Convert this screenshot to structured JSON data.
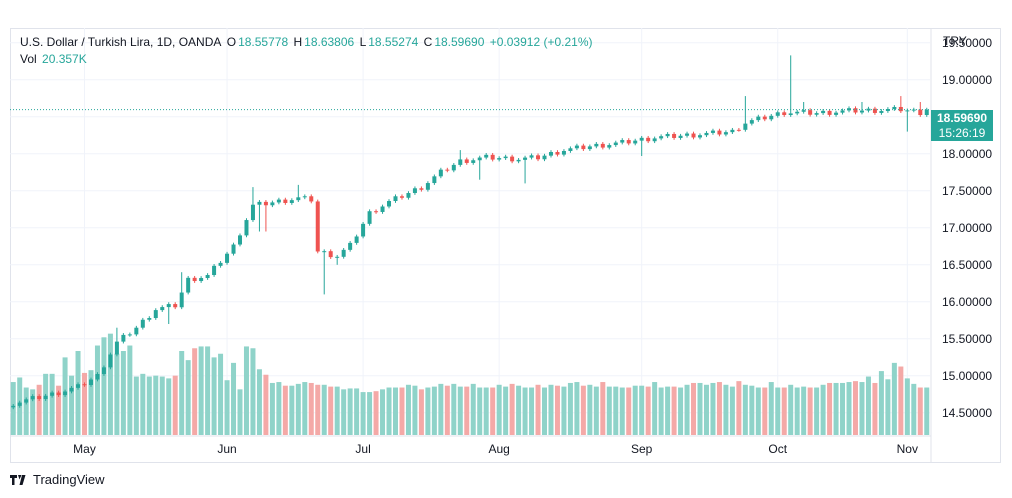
{
  "legend": {
    "symbol": "U.S. Dollar / Turkish Lira, 1D, OANDA",
    "o_label": "O",
    "o_value": "18.55778",
    "h_label": "H",
    "h_value": "18.63806",
    "l_label": "L",
    "l_value": "18.55274",
    "c_label": "C",
    "c_value": "18.59690",
    "change": "+0.03912 (+0.21%)",
    "vol_label": "Vol",
    "vol_value": "20.357K"
  },
  "currency": "TRY",
  "last_price": "18.59690",
  "countdown": "15:26:19",
  "brand": "TradingView",
  "colors": {
    "up": "#26a69a",
    "down": "#ef5350",
    "up_vol": "#8fd3c9",
    "down_vol": "#f4a9a7",
    "grid": "#f0f3fa"
  },
  "chart_data": {
    "type": "candlestick",
    "ylim": [
      14.2,
      19.7
    ],
    "y_ticks": [
      "19.50000",
      "19.00000",
      "18.50000",
      "18.00000",
      "17.50000",
      "17.00000",
      "16.50000",
      "16.00000",
      "15.50000",
      "15.00000",
      "14.50000"
    ],
    "y_tick_values": [
      19.5,
      19.0,
      18.5,
      18.0,
      17.5,
      17.0,
      16.5,
      16.0,
      15.5,
      15.0,
      14.5
    ],
    "x_labels": [
      "May",
      "Jun",
      "Jul",
      "Aug",
      "Sep",
      "Oct",
      "Nov"
    ],
    "x_label_index": [
      11,
      33,
      54,
      75,
      97,
      118,
      138
    ],
    "anchors": [
      [
        0,
        14.63
      ],
      [
        6,
        14.75
      ],
      [
        10,
        14.85
      ],
      [
        13,
        15.0
      ],
      [
        16,
        15.45
      ],
      [
        19,
        15.65
      ],
      [
        22,
        15.9
      ],
      [
        25,
        15.95
      ],
      [
        27,
        16.3
      ],
      [
        30,
        16.35
      ],
      [
        34,
        16.75
      ],
      [
        37,
        17.3
      ],
      [
        44,
        17.4
      ],
      [
        46,
        17.38
      ],
      [
        47,
        16.68
      ],
      [
        50,
        16.62
      ],
      [
        52,
        16.76
      ],
      [
        55,
        17.2
      ],
      [
        58,
        17.35
      ],
      [
        63,
        17.55
      ],
      [
        66,
        17.75
      ],
      [
        69,
        17.9
      ],
      [
        73,
        17.95
      ],
      [
        78,
        17.93
      ],
      [
        81,
        17.95
      ],
      [
        85,
        18.05
      ],
      [
        89,
        18.1
      ],
      [
        94,
        18.15
      ],
      [
        99,
        18.22
      ],
      [
        104,
        18.25
      ],
      [
        107,
        18.27
      ],
      [
        111,
        18.3
      ],
      [
        113,
        18.42
      ],
      [
        116,
        18.49
      ],
      [
        119,
        18.56
      ],
      [
        124,
        18.55
      ],
      [
        129,
        18.58
      ],
      [
        134,
        18.59
      ],
      [
        137,
        18.6
      ],
      [
        140,
        18.56
      ],
      [
        141,
        18.5969
      ]
    ],
    "spikes": [
      {
        "i": 16,
        "high": 15.65
      },
      {
        "i": 17,
        "high": 15.5
      },
      {
        "i": 18,
        "high": 15.45
      },
      {
        "i": 24,
        "low": 15.7
      },
      {
        "i": 26,
        "high": 16.4
      },
      {
        "i": 37,
        "high": 17.55
      },
      {
        "i": 38,
        "high": 17.35,
        "low": 16.95
      },
      {
        "i": 39,
        "low": 16.95
      },
      {
        "i": 44,
        "high": 17.58
      },
      {
        "i": 48,
        "low": 16.1
      },
      {
        "i": 50,
        "low": 16.5
      },
      {
        "i": 69,
        "high": 18.05
      },
      {
        "i": 72,
        "low": 17.65
      },
      {
        "i": 79,
        "low": 17.6
      },
      {
        "i": 81,
        "high": 17.95
      },
      {
        "i": 97,
        "low": 17.97
      },
      {
        "i": 113,
        "high": 18.78
      },
      {
        "i": 120,
        "high": 19.33
      },
      {
        "i": 122,
        "high": 18.7
      },
      {
        "i": 131,
        "high": 18.7
      },
      {
        "i": 137,
        "high": 18.78
      },
      {
        "i": 138,
        "low": 18.3
      },
      {
        "i": 140,
        "high": 18.7
      }
    ],
    "volumes": [
      58,
      63,
      52,
      50,
      55,
      67,
      67,
      54,
      85,
      65,
      92,
      68,
      71,
      98,
      107,
      111,
      89,
      92,
      98,
      64,
      67,
      64,
      65,
      64,
      62,
      65,
      92,
      82,
      95,
      97,
      97,
      85,
      89,
      60,
      79,
      50,
      97,
      95,
      72,
      66,
      57,
      58,
      54,
      54,
      56,
      58,
      57,
      55,
      55,
      53,
      53,
      50,
      51,
      51,
      47,
      47,
      48,
      50,
      52,
      52,
      52,
      55,
      54,
      50,
      52,
      53,
      56,
      54,
      56,
      53,
      53,
      56,
      52,
      52,
      52,
      55,
      53,
      56,
      54,
      52,
      52,
      55,
      52,
      55,
      54,
      53,
      57,
      58,
      54,
      55,
      53,
      58,
      53,
      53,
      52,
      52,
      54,
      54,
      53,
      58,
      52,
      53,
      53,
      52,
      55,
      57,
      57,
      55,
      57,
      58,
      55,
      53,
      59,
      55,
      54,
      52,
      52,
      58,
      52,
      52,
      55,
      52,
      53,
      52,
      52,
      55,
      57,
      57,
      57,
      58,
      59,
      58,
      64,
      57,
      70,
      61,
      79,
      75,
      62,
      56,
      52,
      52
    ],
    "vol_max": 115
  }
}
